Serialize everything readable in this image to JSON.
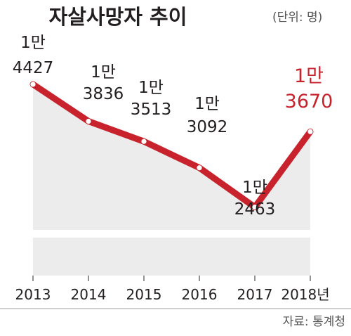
{
  "chart_data": {
    "type": "line",
    "title": "자살사망자 추이",
    "unit_note": "(단위: 명)",
    "source": "자료: 통계청",
    "categories": [
      "2013",
      "2014",
      "2015",
      "2016",
      "2017",
      "2018년"
    ],
    "series": [
      {
        "values": [
          14427,
          13836,
          13513,
          13092,
          12463,
          13670
        ]
      }
    ],
    "value_labels": [
      [
        "1만",
        "4427"
      ],
      [
        "1만",
        "3836"
      ],
      [
        "1만",
        "3513"
      ],
      [
        "1만",
        "3092"
      ],
      [
        "1만",
        "2463"
      ],
      [
        "1만",
        "3670"
      ]
    ],
    "colors": {
      "line": "#c8232c",
      "highlight_label": "#c8232c",
      "text": "#231f20",
      "area": "#ececec",
      "marker_fill": "#ffffff",
      "source_text": "#555555"
    },
    "grid": false,
    "legend": "none",
    "y_axis_break": true
  }
}
